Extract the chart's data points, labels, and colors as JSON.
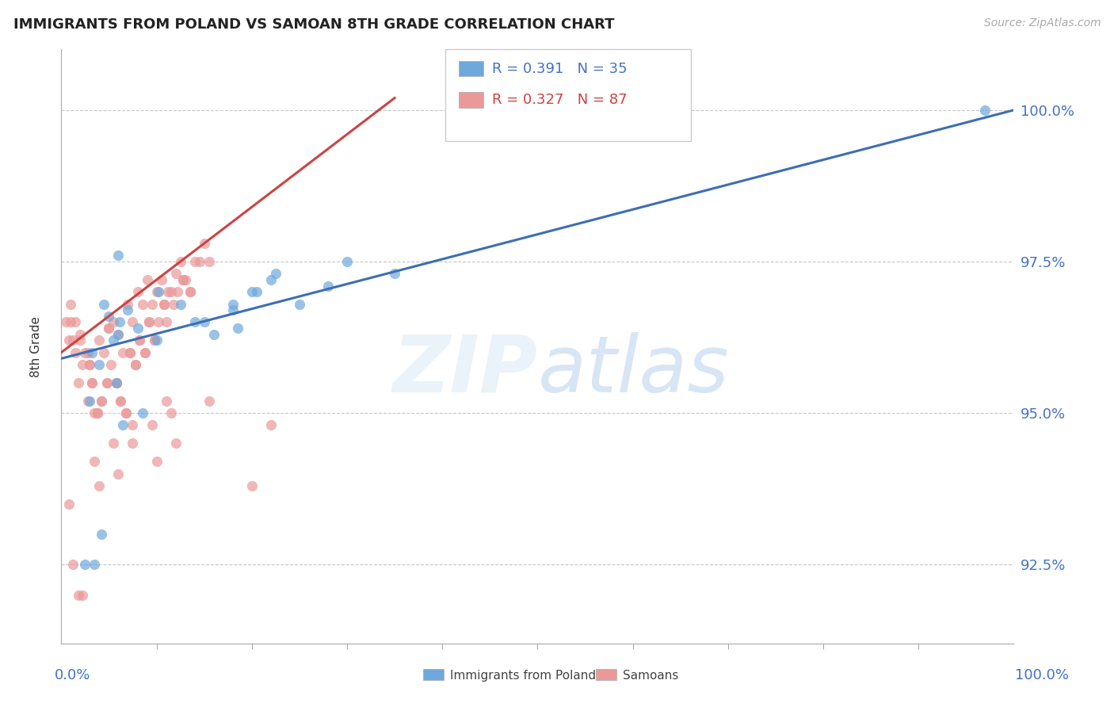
{
  "title": "IMMIGRANTS FROM POLAND VS SAMOAN 8TH GRADE CORRELATION CHART",
  "source": "Source: ZipAtlas.com",
  "ylabel": "8th Grade",
  "ytick_values": [
    100.0,
    97.5,
    95.0,
    92.5
  ],
  "xlim": [
    0.0,
    100.0
  ],
  "ylim": [
    91.2,
    101.0
  ],
  "legend_label1": "Immigrants from Poland",
  "legend_label2": "Samoans",
  "R_poland": 0.391,
  "N_poland": 35,
  "R_samoan": 0.327,
  "N_samoan": 87,
  "color_poland": "#6fa8dc",
  "color_samoan": "#ea9999",
  "color_poland_line": "#3d6eb5",
  "color_samoan_line": "#cc4444",
  "color_axis_text": "#4472c4",
  "poland_line_x0": 0,
  "poland_line_y0": 95.9,
  "poland_line_x1": 100,
  "poland_line_y1": 100.0,
  "samoan_line_x0": 0,
  "samoan_line_y0": 96.0,
  "samoan_line_x1": 35,
  "samoan_line_y1": 100.2,
  "poland_x": [
    2.5,
    3.0,
    3.2,
    3.5,
    4.0,
    4.2,
    4.5,
    5.0,
    5.5,
    5.8,
    6.0,
    6.1,
    6.5,
    7.0,
    8.0,
    8.5,
    10.0,
    10.2,
    12.5,
    14.0,
    15.0,
    16.0,
    18.0,
    18.0,
    18.5,
    20.0,
    20.5,
    22.0,
    22.5,
    25.0,
    28.0,
    30.0,
    35.0,
    6.0,
    97.0
  ],
  "poland_y": [
    92.5,
    95.2,
    96.0,
    92.5,
    95.8,
    93.0,
    96.8,
    96.6,
    96.2,
    95.5,
    97.6,
    96.5,
    94.8,
    96.7,
    96.4,
    95.0,
    96.2,
    97.0,
    96.8,
    96.5,
    96.5,
    96.3,
    96.7,
    96.8,
    96.4,
    97.0,
    97.0,
    97.2,
    97.3,
    96.8,
    97.1,
    97.5,
    97.3,
    96.3,
    100.0
  ],
  "samoan_x": [
    0.5,
    0.8,
    1.0,
    1.0,
    1.2,
    1.5,
    1.8,
    2.0,
    2.0,
    2.2,
    2.5,
    2.8,
    3.0,
    3.2,
    3.5,
    3.8,
    4.0,
    4.2,
    4.5,
    4.8,
    5.0,
    5.2,
    5.5,
    5.8,
    6.0,
    6.2,
    6.5,
    6.8,
    7.0,
    7.2,
    7.5,
    7.8,
    8.0,
    8.2,
    8.5,
    8.8,
    9.0,
    9.2,
    9.5,
    9.8,
    10.0,
    10.2,
    10.5,
    10.8,
    11.0,
    11.2,
    11.5,
    11.8,
    12.0,
    12.2,
    12.5,
    12.8,
    13.0,
    13.5,
    14.0,
    14.5,
    15.0,
    15.5,
    3.5,
    5.5,
    9.5,
    11.5,
    13.5,
    15.5,
    3.2,
    7.5,
    20.0,
    22.0,
    1.5,
    2.8,
    5.8,
    6.8,
    8.8,
    10.8,
    12.8,
    7.2,
    4.8,
    4.2,
    8.2,
    9.2,
    9.8,
    3.8,
    6.2,
    7.8,
    3.0,
    5.0
  ],
  "samoan_y": [
    96.5,
    96.2,
    96.8,
    96.5,
    96.2,
    96.0,
    95.5,
    96.3,
    96.2,
    95.8,
    96.0,
    95.2,
    95.8,
    95.5,
    95.0,
    95.0,
    96.2,
    95.2,
    96.0,
    95.5,
    96.4,
    95.8,
    96.5,
    95.5,
    96.3,
    95.2,
    96.0,
    95.0,
    96.8,
    96.0,
    96.5,
    95.8,
    97.0,
    96.2,
    96.8,
    96.0,
    97.2,
    96.5,
    96.8,
    96.2,
    97.0,
    96.5,
    97.2,
    96.8,
    96.5,
    97.0,
    97.0,
    96.8,
    97.3,
    97.0,
    97.5,
    97.2,
    97.2,
    97.0,
    97.5,
    97.5,
    97.8,
    97.5,
    94.2,
    94.5,
    94.8,
    95.0,
    97.0,
    95.2,
    95.5,
    94.5,
    93.8,
    94.8,
    96.5,
    96.0,
    95.5,
    95.0,
    96.0,
    96.8,
    97.2,
    96.0,
    95.5,
    95.2,
    96.2,
    96.5,
    96.2,
    95.0,
    95.2,
    95.8,
    95.8,
    96.4
  ],
  "samoan_extra_x": [
    0.8,
    1.2,
    1.8,
    2.2,
    4.0,
    6.0,
    10.0,
    12.0,
    7.5,
    11.0
  ],
  "samoan_extra_y": [
    93.5,
    92.5,
    92.0,
    92.0,
    93.8,
    94.0,
    94.2,
    94.5,
    94.8,
    95.2
  ]
}
